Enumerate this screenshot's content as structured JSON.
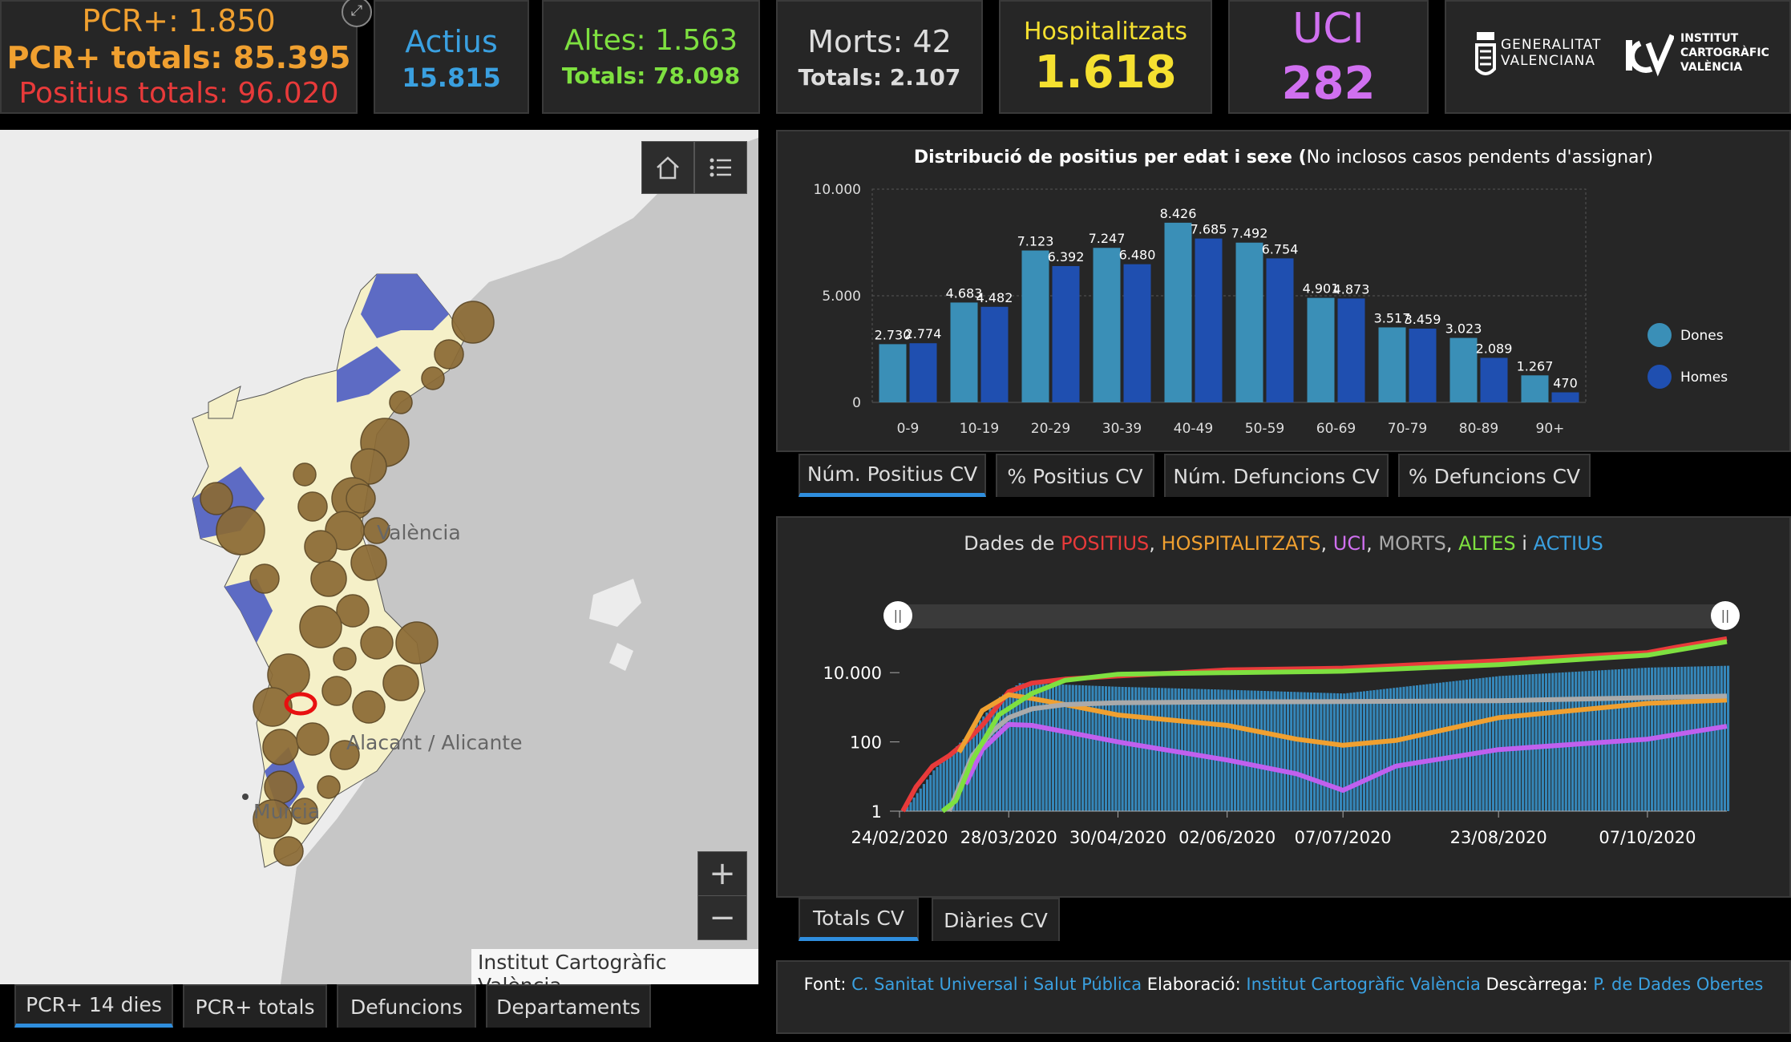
{
  "kpis": {
    "pcr": {
      "pcr_label": "PCR+: 1.850",
      "pcr_total_label": "PCR+ totals: 85.395",
      "positius_total_label": "Positius totals: 96.020"
    },
    "actius": {
      "title": "Actius",
      "value": "15.815"
    },
    "altes": {
      "title": "Altes: 1.563",
      "total": "Totals: 78.098"
    },
    "morts": {
      "title": "Morts: 42",
      "total": "Totals: 2.107"
    },
    "hosp": {
      "title": "Hospitalitzats",
      "value": "1.618"
    },
    "uci": {
      "title": "UCI",
      "value": "282"
    },
    "logos": {
      "gva_line1": "GENERALITAT",
      "gva_line2": "VALENCIANA",
      "icv_line1": "INSTITUT",
      "icv_line2": "CARTOGRÀFIC",
      "icv_line3": "VALÈNCIA"
    }
  },
  "map": {
    "labels": {
      "valencia": "València",
      "alicante": "Alacant / Alicante",
      "murcia": "Murcia"
    },
    "attribution": "Institut Cartogràfic València",
    "zoom_in": "+",
    "zoom_out": "−",
    "tabs": [
      "PCR+ 14 dies",
      "PCR+ totals",
      "Defuncions",
      "Departaments"
    ]
  },
  "chart_tabs": [
    "Núm. Positius CV",
    "% Positius CV",
    "Núm. Defuncions CV",
    "% Defuncions CV"
  ],
  "line_tabs": [
    "Totals CV",
    "Diàries CV"
  ],
  "bar_chart_title_main": "Distribució de positius per edat i sexe (",
  "bar_chart_title_sub": "No inclosos casos pendents d'assignar)",
  "chart_data": [
    {
      "type": "bar",
      "title": "Distribució de positius per edat i sexe (No inclosos casos pendents d'assignar)",
      "categories": [
        "0-9",
        "10-19",
        "20-29",
        "30-39",
        "40-49",
        "50-59",
        "60-69",
        "70-79",
        "80-89",
        "90+"
      ],
      "series": [
        {
          "name": "Dones",
          "color": "#3a8fb7",
          "values": [
            2730,
            4683,
            7123,
            7247,
            8426,
            7492,
            4901,
            3517,
            3023,
            1267
          ],
          "labels": [
            "2.730",
            "4.683",
            "7.123",
            "7.247",
            "8.426",
            "7.492",
            "4.901",
            "3.517",
            "3.023",
            "1.267"
          ]
        },
        {
          "name": "Homes",
          "color": "#1f4fb0",
          "values": [
            2774,
            4482,
            6392,
            6480,
            7685,
            6754,
            4873,
            3459,
            2089,
            470
          ],
          "labels": [
            "2.774",
            "4.482",
            "6.392",
            "6.480",
            "7.685",
            "6.754",
            "4.873",
            "3.459",
            "2.089",
            "470"
          ]
        }
      ],
      "ylim": [
        0,
        10000
      ],
      "yticks": [
        0,
        5000,
        10000
      ],
      "ytick_labels": [
        "0",
        "5.000",
        "10.000"
      ],
      "legend": "right"
    },
    {
      "type": "line",
      "title_parts": [
        {
          "text": "Dades de ",
          "color": "#dddddd"
        },
        {
          "text": "POSITIUS",
          "color": "#e83a3a"
        },
        {
          "text": ", ",
          "color": "#dddddd"
        },
        {
          "text": "HOSPITALITZATS",
          "color": "#f0a030"
        },
        {
          "text": ", ",
          "color": "#dddddd"
        },
        {
          "text": "UCI",
          "color": "#d070f0"
        },
        {
          "text": ", ",
          "color": "#dddddd"
        },
        {
          "text": "MORTS",
          "color": "#aaaaaa"
        },
        {
          "text": ", ",
          "color": "#dddddd"
        },
        {
          "text": "ALTES",
          "color": "#7ee040"
        },
        {
          "text": " i ",
          "color": "#dddddd"
        },
        {
          "text": "ACTIUS",
          "color": "#3aa0e0"
        }
      ],
      "x_tick_labels": [
        "24/02/2020",
        "28/03/2020",
        "30/04/2020",
        "02/06/2020",
        "07/07/2020",
        "23/08/2020",
        "07/10/2020"
      ],
      "x_tick_days": [
        0,
        33,
        66,
        99,
        134,
        181,
        226
      ],
      "yscale": "log",
      "ylim": [
        1,
        100000
      ],
      "ytick_labels": [
        "1",
        "100",
        "10.000"
      ],
      "yticks": [
        1,
        100,
        10000
      ],
      "series": [
        {
          "name": "POSITIUS",
          "color": "#e83a3a",
          "points": [
            [
              1,
              1
            ],
            [
              5,
              5
            ],
            [
              10,
              20
            ],
            [
              15,
              40
            ],
            [
              20,
              100
            ],
            [
              25,
              300
            ],
            [
              30,
              1200
            ],
            [
              33,
              2800
            ],
            [
              40,
              5000
            ],
            [
              50,
              6500
            ],
            [
              66,
              8000
            ],
            [
              99,
              12000
            ],
            [
              134,
              13500
            ],
            [
              181,
              22000
            ],
            [
              226,
              38000
            ],
            [
              235,
              55000
            ],
            [
              250,
              96020
            ]
          ]
        },
        {
          "name": "HOSPITALITZATS",
          "color": "#f0a030",
          "points": [
            [
              18,
              50
            ],
            [
              25,
              800
            ],
            [
              33,
              2300
            ],
            [
              40,
              1800
            ],
            [
              50,
              1200
            ],
            [
              66,
              600
            ],
            [
              99,
              300
            ],
            [
              120,
              120
            ],
            [
              134,
              80
            ],
            [
              150,
              110
            ],
            [
              181,
              500
            ],
            [
              226,
              1300
            ],
            [
              250,
              1618
            ]
          ]
        },
        {
          "name": "UCI",
          "color": "#c060ee",
          "points": [
            [
              20,
              6
            ],
            [
              25,
              60
            ],
            [
              33,
              320
            ],
            [
              40,
              300
            ],
            [
              55,
              160
            ],
            [
              66,
              100
            ],
            [
              99,
              30
            ],
            [
              120,
              12
            ],
            [
              134,
              4
            ],
            [
              150,
              20
            ],
            [
              181,
              60
            ],
            [
              226,
              120
            ],
            [
              250,
              282
            ]
          ]
        },
        {
          "name": "MORTS",
          "color": "#aaaaaa",
          "points": [
            [
              15,
              1
            ],
            [
              22,
              40
            ],
            [
              28,
              200
            ],
            [
              33,
              500
            ],
            [
              40,
              900
            ],
            [
              50,
              1200
            ],
            [
              66,
              1350
            ],
            [
              99,
              1430
            ],
            [
              134,
              1460
            ],
            [
              181,
              1550
            ],
            [
              226,
              1900
            ],
            [
              250,
              2107
            ]
          ]
        },
        {
          "name": "ALTES",
          "color": "#7ee040",
          "points": [
            [
              13,
              1
            ],
            [
              17,
              2
            ],
            [
              22,
              30
            ],
            [
              30,
              600
            ],
            [
              40,
              2500
            ],
            [
              50,
              6000
            ],
            [
              66,
              9000
            ],
            [
              99,
              10000
            ],
            [
              134,
              11000
            ],
            [
              181,
              17000
            ],
            [
              226,
              32000
            ],
            [
              250,
              78098
            ]
          ]
        },
        {
          "name": "ACTIUS",
          "color": "#3aa0e0",
          "points": [
            [
              1,
              1
            ],
            [
              10,
              15
            ],
            [
              20,
              150
            ],
            [
              30,
              2000
            ],
            [
              36,
              5000
            ],
            [
              50,
              4500
            ],
            [
              66,
              3900
            ],
            [
              99,
              3200
            ],
            [
              134,
              2500
            ],
            [
              181,
              8000
            ],
            [
              226,
              14000
            ],
            [
              250,
              15815
            ]
          ]
        }
      ]
    }
  ],
  "footer": {
    "font_label": "Font: ",
    "font_link": "C. Sanitat Universal i Salut Pública",
    "elab_label": " Elaboració: ",
    "elab_link": "Institut Cartogràfic València",
    "desc_label": " Descàrrega: ",
    "desc_link": "P. de Dades Obertes"
  }
}
